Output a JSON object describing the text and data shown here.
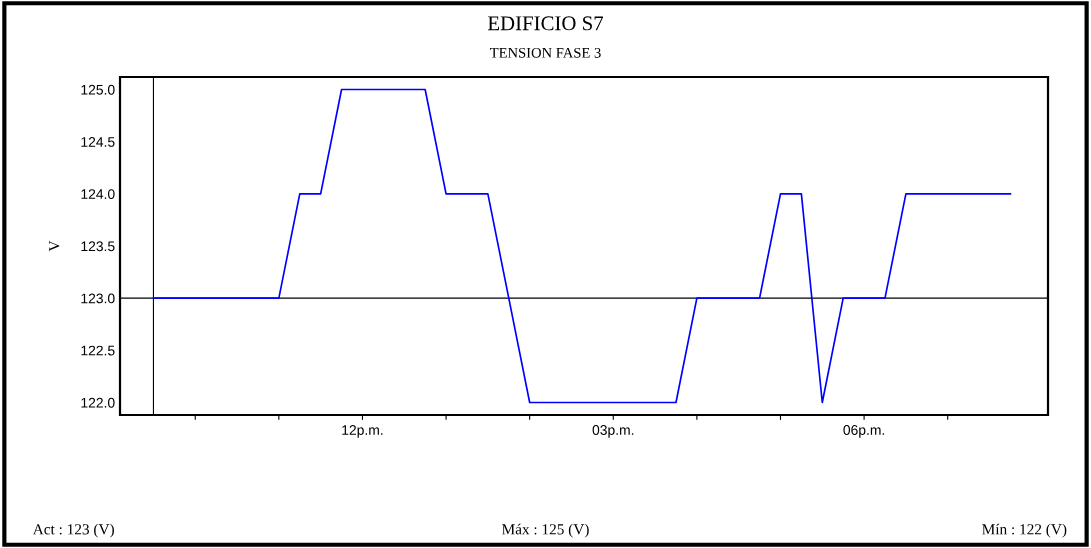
{
  "chart_data": {
    "type": "line",
    "title": "EDIFICIO S7",
    "subtitle": "TENSION FASE 3",
    "ylabel": "V",
    "categories": [
      null,
      null,
      null,
      null,
      null,
      null,
      null,
      null,
      null,
      null,
      "12p.m.",
      null,
      null,
      null,
      null,
      null,
      null,
      null,
      null,
      null,
      null,
      null,
      "03p.m.",
      null,
      null,
      null,
      null,
      null,
      null,
      null,
      null,
      null,
      null,
      null,
      "06p.m.",
      null,
      null,
      null,
      null,
      null,
      null,
      null
    ],
    "series": [
      {
        "color": "#0000ff",
        "values": [
          123,
          123,
          123,
          123,
          123,
          123,
          123,
          124,
          124,
          125,
          125,
          125,
          125,
          125,
          124,
          124,
          124,
          123,
          122,
          122,
          122,
          122,
          122,
          122,
          122,
          122,
          123,
          123,
          123,
          123,
          124,
          124,
          122,
          123,
          123,
          123,
          124,
          124,
          124,
          124,
          124,
          124
        ]
      }
    ],
    "ylim": [
      121.88,
      125.12
    ],
    "yticks": [
      {
        "value": 122,
        "label": "122.0"
      },
      {
        "value": 122.5,
        "label": "122.5"
      },
      {
        "value": 123,
        "label": "123.0"
      },
      {
        "value": 123.5,
        "label": "123.5"
      },
      {
        "value": 124,
        "label": "124.0"
      },
      {
        "value": 124.5,
        "label": "124.5"
      },
      {
        "value": 125,
        "label": "125.0"
      }
    ],
    "ref_lines": [
      {
        "axis": "y",
        "value": 123,
        "color": "#000000"
      }
    ],
    "annotations": [
      "Act : 123 (V)",
      "Máx : 125 (V)",
      "Mín : 122 (V)"
    ],
    "grid": false,
    "marker": "none",
    "line_style": "solid"
  }
}
